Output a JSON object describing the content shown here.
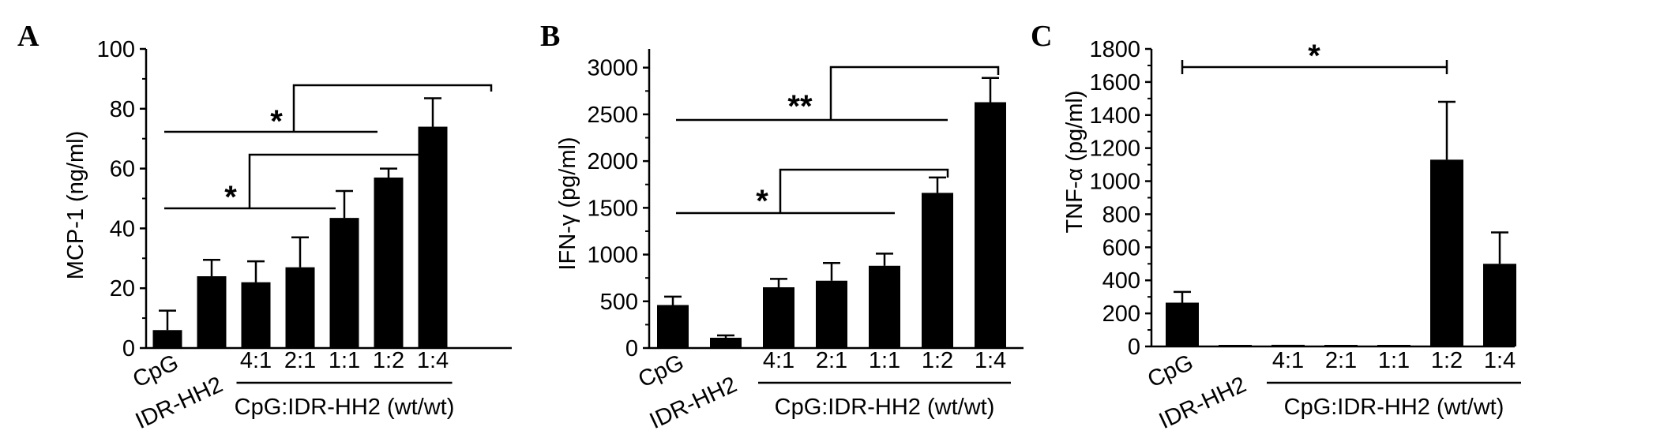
{
  "chart_data": [
    {
      "panel": "A",
      "type": "bar",
      "ylabel": "MCP-1 (ng/ml)",
      "ylim": [
        0,
        100
      ],
      "yticks": [
        "0",
        "20",
        "40",
        "60",
        "80",
        "100"
      ],
      "categories": [
        "CpG",
        "IDR-HH2",
        "4:1",
        "2:1",
        "1:1",
        "1:2",
        "1:4"
      ],
      "group_label": "CpG:IDR-HH2 (wt/wt)",
      "values": [
        6,
        24,
        22,
        27,
        43.5,
        57,
        74
      ],
      "errors": [
        6.5,
        5.5,
        7,
        10,
        9,
        3,
        9.5
      ],
      "significance": [
        "*",
        "*"
      ]
    },
    {
      "panel": "B",
      "type": "bar",
      "ylabel": "IFN-γ (pg/ml)",
      "ylim": [
        0,
        3200
      ],
      "yticks": [
        "0",
        "500",
        "1000",
        "1500",
        "2000",
        "2500",
        "3000"
      ],
      "categories": [
        "CpG",
        "IDR-HH2",
        "4:1",
        "2:1",
        "1:1",
        "1:2",
        "1:4"
      ],
      "group_label": "CpG:IDR-HH2 (wt/wt)",
      "values": [
        460,
        110,
        650,
        720,
        880,
        1660,
        2630
      ],
      "errors": [
        90,
        25,
        90,
        190,
        130,
        165,
        260
      ],
      "significance": [
        "**",
        "*"
      ]
    },
    {
      "panel": "C",
      "type": "bar",
      "ylabel": "TNF-α (pg/ml)",
      "ylim": [
        0,
        1800
      ],
      "yticks": [
        "0",
        "200",
        "400",
        "600",
        "800",
        "1000",
        "1200",
        "1400",
        "1600",
        "1800"
      ],
      "categories": [
        "CpG",
        "IDR-HH2",
        "4:1",
        "2:1",
        "1:1",
        "1:2",
        "1:4"
      ],
      "group_label": "CpG:IDR-HH2 (wt/wt)",
      "values": [
        265,
        3,
        10,
        4,
        5,
        1130,
        500
      ],
      "errors": [
        65,
        0,
        0,
        0,
        0,
        350,
        190
      ],
      "significance": [
        "*"
      ]
    }
  ]
}
